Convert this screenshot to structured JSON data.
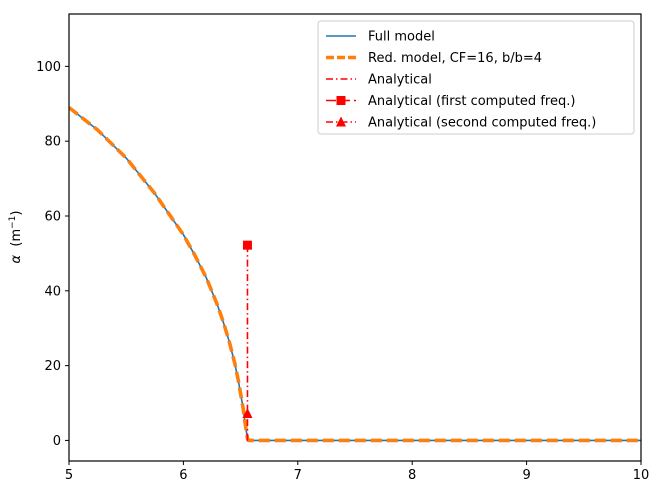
{
  "chart_data": {
    "type": "line",
    "title": "",
    "xlabel": "",
    "ylabel": "α  (m⁻¹)",
    "ylabel_parts": {
      "symbol": "α",
      "unit_base": "m",
      "unit_exp": "−1"
    },
    "xlim": [
      5,
      10
    ],
    "ylim": [
      -5.5,
      114
    ],
    "xticks": [
      5,
      6,
      7,
      8,
      9,
      10
    ],
    "yticks": [
      0,
      20,
      40,
      60,
      80,
      100
    ],
    "grid": false,
    "legend_position": "top-right",
    "series": [
      {
        "name": "Full model",
        "color": "#1f77b4",
        "style": "solid",
        "x": [
          5.0,
          5.25,
          5.5,
          5.75,
          6.0,
          6.1,
          6.2,
          6.3,
          6.35,
          6.4,
          6.45,
          6.48,
          6.5,
          6.52,
          6.54,
          6.56,
          6.57,
          7.0,
          7.5,
          8.0,
          8.5,
          9.0,
          9.5,
          10.0
        ],
        "y": [
          89,
          83,
          75.5,
          66,
          55,
          49.5,
          43.5,
          36,
          31.5,
          26.5,
          20.5,
          16,
          12.5,
          9,
          4.5,
          0.5,
          0,
          0,
          0,
          0,
          0,
          0,
          0,
          0
        ]
      },
      {
        "name": "Red. model, CF=16, b/b=4",
        "color": "#ff7f0e",
        "style": "dashed",
        "x": [
          5.0,
          5.25,
          5.5,
          5.75,
          6.0,
          6.1,
          6.2,
          6.3,
          6.35,
          6.4,
          6.45,
          6.48,
          6.5,
          6.52,
          6.54,
          6.56,
          6.57,
          7.0,
          7.5,
          8.0,
          8.5,
          9.0,
          9.5,
          10.0
        ],
        "y": [
          89,
          83,
          75.5,
          66,
          55,
          49.5,
          43.5,
          36,
          31.5,
          26.5,
          20.5,
          16,
          12.5,
          9,
          4.5,
          0.5,
          0,
          0,
          0,
          0,
          0,
          0,
          0,
          0
        ]
      },
      {
        "name": "Analytical",
        "color": "#ff0000",
        "style": "dashdot",
        "x": [
          6.56,
          6.56,
          6.57
        ],
        "y": [
          52.2,
          0,
          0
        ]
      },
      {
        "name": "Analytical (first computed freq.)",
        "color": "#ff0000",
        "style": "dashed",
        "marker": "square",
        "x": [
          6.56
        ],
        "y": [
          52.2
        ]
      },
      {
        "name": "Analytical (second computed freq.)",
        "color": "#ff0000",
        "style": "dashdot",
        "marker": "triangle",
        "x": [
          6.56
        ],
        "y": [
          7.2
        ]
      }
    ]
  }
}
